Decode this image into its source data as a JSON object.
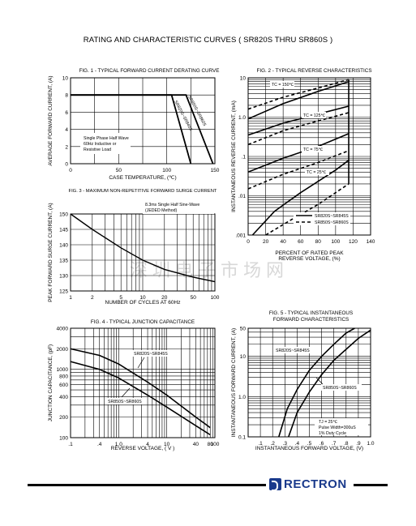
{
  "page_title": "RATING AND CHARACTERISTIC CURVES ( SR820S THRU SR860S )",
  "watermark": "深圳电子市场网",
  "brand": "RECTRON",
  "chart_data": [
    {
      "id": "fig1",
      "type": "line",
      "title": "FIG. 1 - TYPICAL FORWARD CURRENT DERATING CURVE",
      "xlabel": "CASE TEMPERATURE, (℃)",
      "ylabel": "AVERAGE FORWARD CURRENT, (A)",
      "xlim": [
        0,
        150
      ],
      "ylim": [
        0,
        10
      ],
      "x_ticks": [
        "0",
        "50",
        "100",
        "150"
      ],
      "y_ticks": [
        "0",
        "2",
        "4",
        "6",
        "8",
        "10"
      ],
      "note": [
        "Single Phase Half Wave",
        "60Hz Inductive or",
        "Resistive Load"
      ],
      "series": [
        {
          "name": "SR820S~SR845S",
          "points": [
            [
              0,
              8
            ],
            [
              105,
              8
            ],
            [
              125,
              0
            ]
          ]
        },
        {
          "name": "SR850S~SR860S",
          "points": [
            [
              0,
              8
            ],
            [
              120,
              8
            ],
            [
              148,
              0
            ]
          ]
        }
      ]
    },
    {
      "id": "fig2",
      "type": "line",
      "title": "FIG. 2 - TYPICAL REVERSE CHARACTERISTICS",
      "xlabel": [
        "PERCENT OF RATED PEAK",
        "REVERSE VOLTAGE, (%)"
      ],
      "ylabel": "INSTANTANEOUS REVERSE CURRENT, (mA)",
      "xlim": [
        0,
        140
      ],
      "ylim": [
        0.001,
        10
      ],
      "yscale": "log",
      "x_ticks": [
        "0",
        "20",
        "40",
        "60",
        "80",
        "100",
        "120",
        "140"
      ],
      "y_ticks": [
        ".001",
        ".01",
        ".1",
        "1.0",
        "10"
      ],
      "annotations": [
        "TC = 150℃",
        "TC = 125℃",
        "TC = 75℃",
        "TC = 25℃"
      ],
      "legend": [
        "SR820S~SR845S",
        "SR850S~SR860S"
      ],
      "series": [
        {
          "name": "SR820S~SR845S",
          "label": "TC = 150℃",
          "points": [
            [
              0,
              0.9
            ],
            [
              40,
              2.2
            ],
            [
              80,
              4.5
            ],
            [
              115,
              8
            ]
          ]
        },
        {
          "name": "SR850S~SR860S",
          "label": "TC = 150℃",
          "points": [
            [
              0,
              1.6
            ],
            [
              40,
              3.2
            ],
            [
              80,
              5.5
            ],
            [
              115,
              9
            ]
          ]
        },
        {
          "name": "SR820S~SR845S",
          "label": "TC = 125℃",
          "points": [
            [
              0,
              0.35
            ],
            [
              40,
              0.7
            ],
            [
              80,
              1.2
            ],
            [
              115,
              1.9
            ]
          ]
        },
        {
          "name": "SR850S~SR860S",
          "label": "TC = 125℃",
          "points": [
            [
              0,
              0.2
            ],
            [
              40,
              0.45
            ],
            [
              80,
              0.8
            ],
            [
              115,
              1.3
            ]
          ]
        },
        {
          "name": "SR820S~SR845S",
          "label": "TC = 75℃",
          "points": [
            [
              0,
              0.04
            ],
            [
              40,
              0.09
            ],
            [
              80,
              0.18
            ],
            [
              115,
              0.38
            ]
          ]
        },
        {
          "name": "SR850S~SR860S",
          "label": "TC = 75℃",
          "points": [
            [
              0,
              0.015
            ],
            [
              40,
              0.035
            ],
            [
              80,
              0.07
            ],
            [
              115,
              0.14
            ]
          ]
        },
        {
          "name": "SR820S~SR845S",
          "label": "TC = 25℃",
          "points": [
            [
              5,
              0.001
            ],
            [
              30,
              0.004
            ],
            [
              60,
              0.012
            ],
            [
              100,
              0.045
            ],
            [
              115,
              0.08
            ]
          ]
        },
        {
          "name": "SR850S~SR860S",
          "label": "TC = 25℃",
          "points": [
            [
              20,
              0.001
            ],
            [
              50,
              0.0025
            ],
            [
              80,
              0.006
            ],
            [
              100,
              0.012
            ],
            [
              115,
              0.02
            ]
          ]
        }
      ]
    },
    {
      "id": "fig3",
      "type": "line",
      "title": "FIG. 3 - MAXIMUM NON-REPETITIVE FORWARD SURGE CURRENT",
      "xlabel": "NUMBER OF CYCLES AT 60Hz",
      "ylabel": "PEAK FORWARD SURGE CURRENT, (A)",
      "xlim": [
        1,
        100
      ],
      "ylim": [
        125,
        150
      ],
      "xscale": "log",
      "x_ticks": [
        "1",
        "2",
        "5",
        "10",
        "20",
        "50",
        "100"
      ],
      "y_ticks": [
        "125",
        "130",
        "135",
        "140",
        "145",
        "150"
      ],
      "note": [
        "8.3ms Single Half Sine-Wave",
        "(JEDED Method)"
      ],
      "series": [
        {
          "name": "",
          "points": [
            [
              1,
              150
            ],
            [
              2,
              145
            ],
            [
              5,
              139
            ],
            [
              10,
              135
            ],
            [
              20,
              132
            ],
            [
              50,
              129.5
            ],
            [
              100,
              128
            ]
          ]
        }
      ]
    },
    {
      "id": "fig4",
      "type": "line",
      "title": "FIG. 4 - TYPICAL JUNCTION CAPACITANCE",
      "xlabel": "REVERSE VOLTAGE, ( V )",
      "ylabel": "JUNCTION CAPACITANCE, (pF)",
      "xlim": [
        0.1,
        100
      ],
      "ylim": [
        100,
        4000
      ],
      "xscale": "log",
      "yscale": "log",
      "x_ticks": [
        ".1",
        ".4",
        "1.0",
        "4",
        "10",
        "40",
        "80",
        "100"
      ],
      "y_ticks": [
        "100",
        "200",
        "400",
        "600",
        "800",
        "1000",
        "2000",
        "4000"
      ],
      "series": [
        {
          "name": "SR820S~SR845S",
          "points": [
            [
              0.1,
              2000
            ],
            [
              0.4,
              1600
            ],
            [
              1,
              1200
            ],
            [
              4,
              650
            ],
            [
              10,
              420
            ],
            [
              40,
              200
            ],
            [
              80,
              140
            ]
          ]
        },
        {
          "name": "SR850S~SR860S",
          "points": [
            [
              0.1,
              1300
            ],
            [
              0.4,
              1000
            ],
            [
              1,
              750
            ],
            [
              4,
              420
            ],
            [
              10,
              280
            ],
            [
              40,
              150
            ],
            [
              80,
              110
            ]
          ]
        }
      ]
    },
    {
      "id": "fig5",
      "type": "line",
      "title": [
        "FIG. 5 - TYPICAL INSTANTANEOUS",
        "FORWARD CHARACTERISTICS"
      ],
      "xlabel": "INSTANTANEOUS FORWARD VOLTAGE, (V)",
      "ylabel": "INSTANTANEOUS FORWARD CURRENT, (A)",
      "xlim": [
        0,
        1.0
      ],
      "ylim": [
        0.1,
        50
      ],
      "yscale": "log",
      "x_ticks": [
        ".1",
        ".2",
        ".3",
        ".4",
        ".5",
        ".6",
        ".7",
        ".8",
        ".9",
        "1.0"
      ],
      "y_ticks": [
        "0.1",
        "1.0",
        "10",
        "50"
      ],
      "note": [
        "TJ = 25℃",
        "Pulse Width=300uS",
        "1% Duty Cycle"
      ],
      "series": [
        {
          "name": "SR820S~SR845S",
          "points": [
            [
              0.25,
              0.1
            ],
            [
              0.32,
              0.5
            ],
            [
              0.4,
              1.5
            ],
            [
              0.5,
              4.5
            ],
            [
              0.6,
              10
            ],
            [
              0.7,
              20
            ],
            [
              0.8,
              38
            ],
            [
              0.87,
              50
            ]
          ]
        },
        {
          "name": "SR850S~SR860S",
          "points": [
            [
              0.33,
              0.1
            ],
            [
              0.4,
              0.4
            ],
            [
              0.5,
              1.3
            ],
            [
              0.6,
              3.5
            ],
            [
              0.7,
              8
            ],
            [
              0.8,
              15
            ],
            [
              0.9,
              28
            ],
            [
              1.0,
              45
            ]
          ]
        }
      ]
    }
  ]
}
